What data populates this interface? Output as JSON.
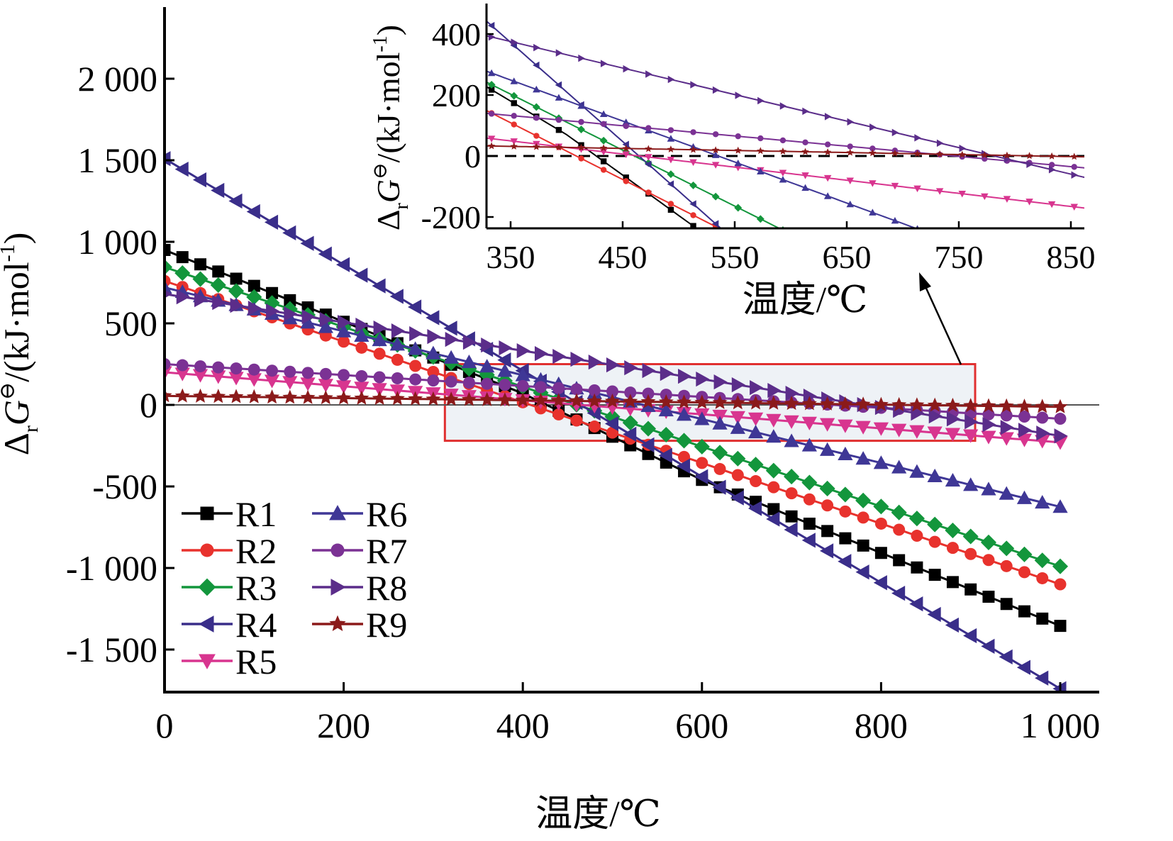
{
  "chart_data": [
    {
      "type": "line",
      "xlabel": "温度/℃",
      "ylabel_parts": {
        "delta": "Δ",
        "sub": "r",
        "var": "G",
        "sup": "⊖",
        "unit": "/(kJ·mol",
        "unit_sup": "-1",
        "close": ")"
      },
      "xlim": [
        0,
        1000
      ],
      "ylim": [
        -1750,
        2450
      ],
      "x_ticks": [
        0,
        200,
        400,
        600,
        800,
        1000
      ],
      "x_tick_labels": [
        "0",
        "200",
        "400",
        "600",
        "800",
        "1 000"
      ],
      "y_ticks": [
        2000,
        1500,
        1000,
        500,
        0,
        -500,
        -1000,
        -1500
      ],
      "y_tick_labels": [
        "2 000",
        "1 500",
        "1 000",
        "500",
        "0",
        "-500",
        "-1 000",
        "-1 500"
      ],
      "zero_line": true,
      "highlight_box": {
        "x": [
          313,
          905
        ],
        "y": [
          -220,
          250
        ],
        "stroke": "#e03030",
        "fill": "#eef2f6"
      },
      "legend_position": "bottom-left",
      "series": [
        {
          "name": "R1",
          "color": "#000000",
          "marker": "square",
          "x": [
            0,
            400,
            600,
            1000
          ],
          "y": [
            950,
            70,
            -460,
            -1355
          ]
        },
        {
          "name": "R2",
          "color": "#e8322d",
          "marker": "circle",
          "x": [
            0,
            1000
          ],
          "y": [
            760,
            -1100
          ]
        },
        {
          "name": "R3",
          "color": "#13963c",
          "marker": "diamond",
          "x": [
            0,
            1000
          ],
          "y": [
            845,
            -990
          ]
        },
        {
          "name": "R4",
          "color": "#3a2e8a",
          "marker": "triangle-left",
          "x": [
            0,
            1000
          ],
          "y": [
            1510,
            -1740
          ]
        },
        {
          "name": "R5",
          "color": "#d8358f",
          "marker": "triangle-down",
          "x": [
            0,
            1000
          ],
          "y": [
            200,
            -230
          ]
        },
        {
          "name": "R6",
          "color": "#3f3796",
          "marker": "triangle-up",
          "x": [
            0,
            1000
          ],
          "y": [
            720,
            -625
          ]
        },
        {
          "name": "R7",
          "color": "#7b3294",
          "marker": "circle",
          "x": [
            0,
            1000
          ],
          "y": [
            250,
            -85
          ]
        },
        {
          "name": "R8",
          "color": "#5b2d8a",
          "marker": "triangle-right",
          "x": [
            0,
            1000
          ],
          "y": [
            680,
            -190
          ]
        },
        {
          "name": "R9",
          "color": "#8b1a1a",
          "marker": "star",
          "x": [
            0,
            1000
          ],
          "y": [
            55,
            -12
          ]
        }
      ]
    },
    {
      "type": "line",
      "role": "inset",
      "xlabel": "温度/℃",
      "ylabel_parts": {
        "delta": "Δ",
        "sub": "r",
        "var": "G",
        "sup": "⊖",
        "unit": "/(kJ·mol",
        "unit_sup": "-1",
        "close": ")"
      },
      "xlim": [
        313,
        860
      ],
      "ylim": [
        -230,
        470
      ],
      "x_ticks": [
        350,
        450,
        550,
        650,
        750,
        850
      ],
      "x_tick_labels": [
        "350",
        "450",
        "550",
        "650",
        "750",
        "850"
      ],
      "y_ticks": [
        400,
        200,
        0,
        -200
      ],
      "y_tick_labels": [
        "400",
        "200",
        "0",
        "-200"
      ],
      "zero_line_dashed": true
    }
  ]
}
